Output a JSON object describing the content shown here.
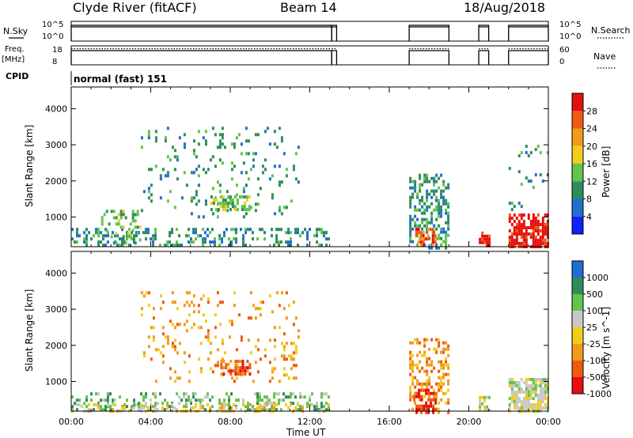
{
  "header": {
    "station": "Clyde River (fitACF)",
    "beam": "Beam 14",
    "date": "18/Aug/2018"
  },
  "left_labels": {
    "nsky": "N.Sky",
    "nsky_top": "10^5",
    "nsky_bottom": "10^0",
    "freq": "Freq.",
    "freq_unit": "[MHz]",
    "freq_top": "18",
    "freq_bottom": "8",
    "cpid": "CPID"
  },
  "right_labels": {
    "nsearch": "N.Search",
    "nsearch_top": "10^5",
    "nsearch_bottom": "10^0",
    "nave": "Nave",
    "nave_top": "60",
    "nave_bottom": "0"
  },
  "cpid_text": "normal (fast) 151",
  "colors": {
    "power": [
      "#1020ff",
      "#1e6fd0",
      "#2f8c5a",
      "#62c44a",
      "#f2cc1a",
      "#f39a1a",
      "#ef5a10",
      "#e60f0f"
    ],
    "velocity": [
      "#e60f0f",
      "#ef5a10",
      "#f39a1a",
      "#f2cc1a",
      "#c8c8c8",
      "#62c44a",
      "#2f8c5a",
      "#1e6fd0"
    ]
  },
  "chart_data": [
    {
      "type": "line",
      "name": "sky-noise-and-search-noise",
      "x_unit": "hours UT",
      "ylim_labels": [
        "10^0",
        "10^5"
      ],
      "on_intervals": [
        [
          0.0,
          13.1
        ],
        [
          13.1,
          13.35
        ],
        [
          17.0,
          19.0
        ],
        [
          20.5,
          21.0
        ],
        [
          22.0,
          24.0
        ]
      ],
      "level_fraction": 0.8
    },
    {
      "type": "line",
      "name": "frequency-and-nave",
      "ylim_freq": [
        8,
        18
      ],
      "ylim_nave": [
        0,
        60
      ],
      "on_intervals": [
        [
          0.0,
          13.1
        ],
        [
          13.1,
          13.35
        ],
        [
          17.0,
          19.0
        ],
        [
          20.5,
          21.0
        ],
        [
          22.0,
          24.0
        ]
      ],
      "freq_level_fraction": 0.75,
      "nave_level_fraction": 0.85
    },
    {
      "type": "heatmap",
      "title": "",
      "xlabel": "",
      "ylabel": "Slant Range [km]",
      "xlim": [
        0,
        24
      ],
      "ylim": [
        180,
        4600
      ],
      "yticks": [
        1000,
        2000,
        3000,
        4000
      ],
      "colorbar_label": "Power [dB]",
      "colorbar_ticks": [
        "4",
        "8",
        "12",
        "16",
        "20",
        "24",
        "28"
      ],
      "regions": [
        {
          "t": [
            0.0,
            13.0
          ],
          "r": [
            180,
            700
          ],
          "level": 2,
          "density": 0.35
        },
        {
          "t": [
            1.5,
            3.5
          ],
          "r": [
            300,
            1200
          ],
          "level": 3,
          "density": 0.25
        },
        {
          "t": [
            3.5,
            11.5
          ],
          "r": [
            1000,
            3500
          ],
          "level": 2,
          "density": 0.1
        },
        {
          "t": [
            7.0,
            9.0
          ],
          "r": [
            1200,
            1600
          ],
          "level": 3,
          "density": 0.55
        },
        {
          "t": [
            17.0,
            19.0
          ],
          "r": [
            180,
            2200
          ],
          "level": 2,
          "density": 0.45
        },
        {
          "t": [
            17.3,
            18.3
          ],
          "r": [
            180,
            700
          ],
          "level": 6,
          "density": 0.55
        },
        {
          "t": [
            20.5,
            21.0
          ],
          "r": [
            180,
            600
          ],
          "level": 7,
          "density": 0.65
        },
        {
          "t": [
            22.0,
            24.0
          ],
          "r": [
            180,
            1100
          ],
          "level": 7,
          "density": 0.75
        },
        {
          "t": [
            22.0,
            24.0
          ],
          "r": [
            1100,
            3000
          ],
          "level": 2,
          "density": 0.08
        }
      ]
    },
    {
      "type": "heatmap",
      "title": "",
      "xlabel": "Time UT",
      "ylabel": "Slant Range [km]",
      "xlim": [
        0,
        24
      ],
      "ylim": [
        180,
        4600
      ],
      "yticks": [
        1000,
        2000,
        3000,
        4000
      ],
      "xticks": [
        "00:00",
        "04:00",
        "08:00",
        "12:00",
        "16:00",
        "20:00",
        "00:00"
      ],
      "colorbar_label": "Velocity [m s^-1]",
      "colorbar_ticks": [
        "1000",
        "500",
        "100",
        "25",
        "-25",
        "-100",
        "-500",
        "-1000"
      ],
      "regions": [
        {
          "t": [
            0.0,
            13.0
          ],
          "r": [
            180,
            700
          ],
          "level": 5,
          "density": 0.35
        },
        {
          "t": [
            0.0,
            13.0
          ],
          "r": [
            180,
            400
          ],
          "level": 3,
          "density": 0.35
        },
        {
          "t": [
            3.5,
            11.5
          ],
          "r": [
            1000,
            3500
          ],
          "level": 2,
          "density": 0.1
        },
        {
          "t": [
            7.5,
            9.0
          ],
          "r": [
            1200,
            1600
          ],
          "level": 1,
          "density": 0.7
        },
        {
          "t": [
            17.0,
            19.0
          ],
          "r": [
            180,
            2200
          ],
          "level": 2,
          "density": 0.4
        },
        {
          "t": [
            17.2,
            18.3
          ],
          "r": [
            180,
            800
          ],
          "level": 0,
          "density": 0.5
        },
        {
          "t": [
            20.5,
            21.0
          ],
          "r": [
            180,
            600
          ],
          "level": 4,
          "density": 0.55
        },
        {
          "t": [
            22.0,
            24.0
          ],
          "r": [
            180,
            1100
          ],
          "level": 4,
          "density": 0.8
        }
      ]
    }
  ]
}
